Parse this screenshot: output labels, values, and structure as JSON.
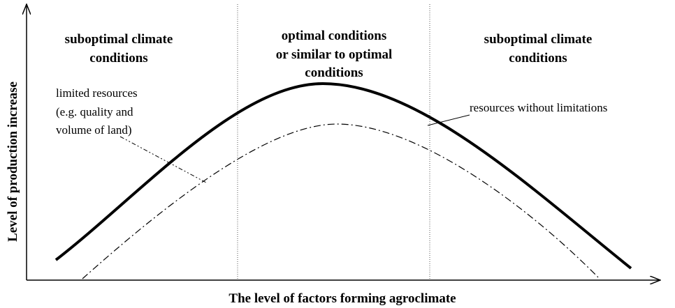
{
  "regions": [
    {
      "lines": [
        "suboptimal climate",
        "conditions"
      ]
    },
    {
      "lines": [
        "optimal conditions",
        "or similar to optimal",
        "conditions"
      ]
    },
    {
      "lines": [
        "suboptimal climate",
        "conditions"
      ]
    }
  ],
  "annotations": {
    "limited": {
      "lines": [
        "limited resources",
        "(e.g. quality and",
        "volume of land)"
      ]
    },
    "unlimited": {
      "lines": [
        "resources without limitations"
      ]
    }
  },
  "axes": {
    "x_label": "The level of factors forming agroclimate",
    "y_label": "Level of production increase"
  }
}
